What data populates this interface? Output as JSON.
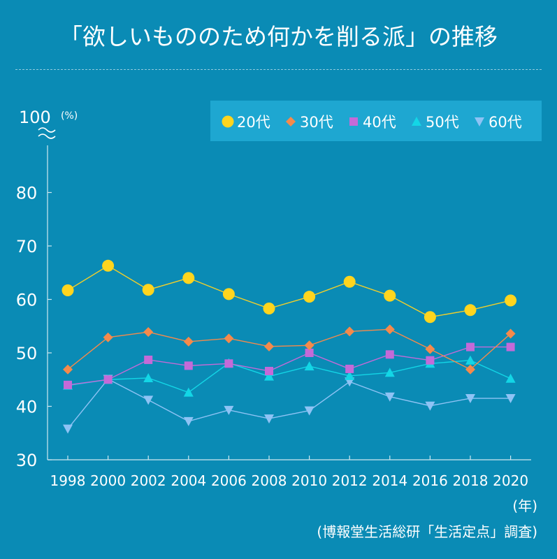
{
  "title": "「欲しいもののため何かを削る派」の推移",
  "colors": {
    "background": "#0a8bb5",
    "legend_bg": "#1ea7d1",
    "axis": "#cfe8f1"
  },
  "chart_data": {
    "type": "line",
    "y_top_label": "100",
    "y_unit": "(%)",
    "x_unit": "(年)",
    "ylim": [
      30,
      85
    ],
    "yticks": [
      30,
      40,
      50,
      60,
      70,
      80
    ],
    "x": [
      "1998",
      "2000",
      "2002",
      "2004",
      "2006",
      "2008",
      "2010",
      "2012",
      "2014",
      "2016",
      "2018",
      "2020"
    ],
    "series": [
      {
        "name": "20代",
        "marker": "circle",
        "color": "#ffd51e",
        "line_color": "#f2cf2a",
        "values": [
          61.7,
          66.3,
          61.8,
          64.0,
          61.0,
          58.3,
          60.5,
          63.3,
          60.7,
          56.7,
          58.0,
          59.8
        ]
      },
      {
        "name": "30代",
        "marker": "diamond",
        "color": "#f58a4b",
        "line_color": "#f58a4b",
        "values": [
          46.9,
          52.9,
          53.9,
          52.1,
          52.7,
          51.2,
          51.4,
          54.0,
          54.4,
          50.7,
          46.9,
          53.6
        ]
      },
      {
        "name": "40代",
        "marker": "square",
        "color": "#c46ad8",
        "line_color": "#c46ad8",
        "values": [
          44.0,
          45.0,
          48.7,
          47.6,
          48.0,
          46.6,
          50.0,
          47.0,
          49.7,
          48.6,
          51.1,
          51.1
        ]
      },
      {
        "name": "50代",
        "marker": "triangle-up",
        "color": "#13d6e6",
        "line_color": "#13d6e6",
        "values": [
          43.9,
          45.0,
          45.3,
          42.6,
          48.1,
          45.6,
          47.5,
          45.7,
          46.3,
          48.0,
          48.6,
          45.2
        ]
      },
      {
        "name": "60代",
        "marker": "triangle-down",
        "color": "#8ec3f5",
        "line_color": "#8ec3f5",
        "values": [
          35.8,
          45.1,
          41.2,
          37.2,
          39.3,
          37.7,
          39.2,
          44.6,
          41.8,
          40.1,
          41.5,
          41.5
        ]
      }
    ]
  },
  "source": "(博報堂生活総研「生活定点」調査)"
}
